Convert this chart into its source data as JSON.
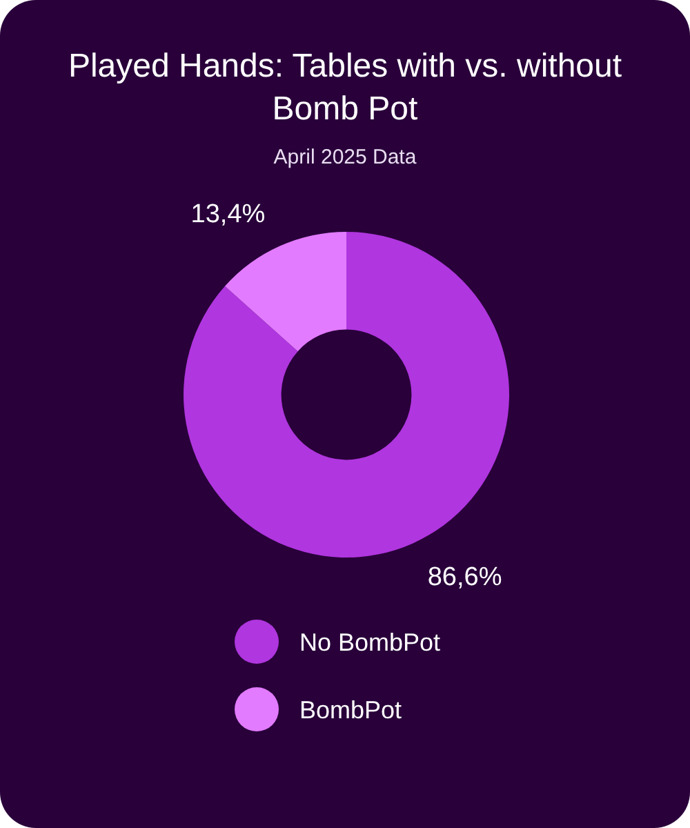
{
  "chart_data": {
    "type": "donut",
    "title": "Played Hands: Tables with vs. without Bomb Pot",
    "subtitle": "April 2025 Data",
    "categories": [
      "No BombPot",
      "BombPot"
    ],
    "values": [
      86.6,
      13.4
    ],
    "colors": [
      "#b036df",
      "#e27bff"
    ],
    "value_labels": [
      "86,6%",
      "13,4%"
    ],
    "legend": "bottom"
  }
}
